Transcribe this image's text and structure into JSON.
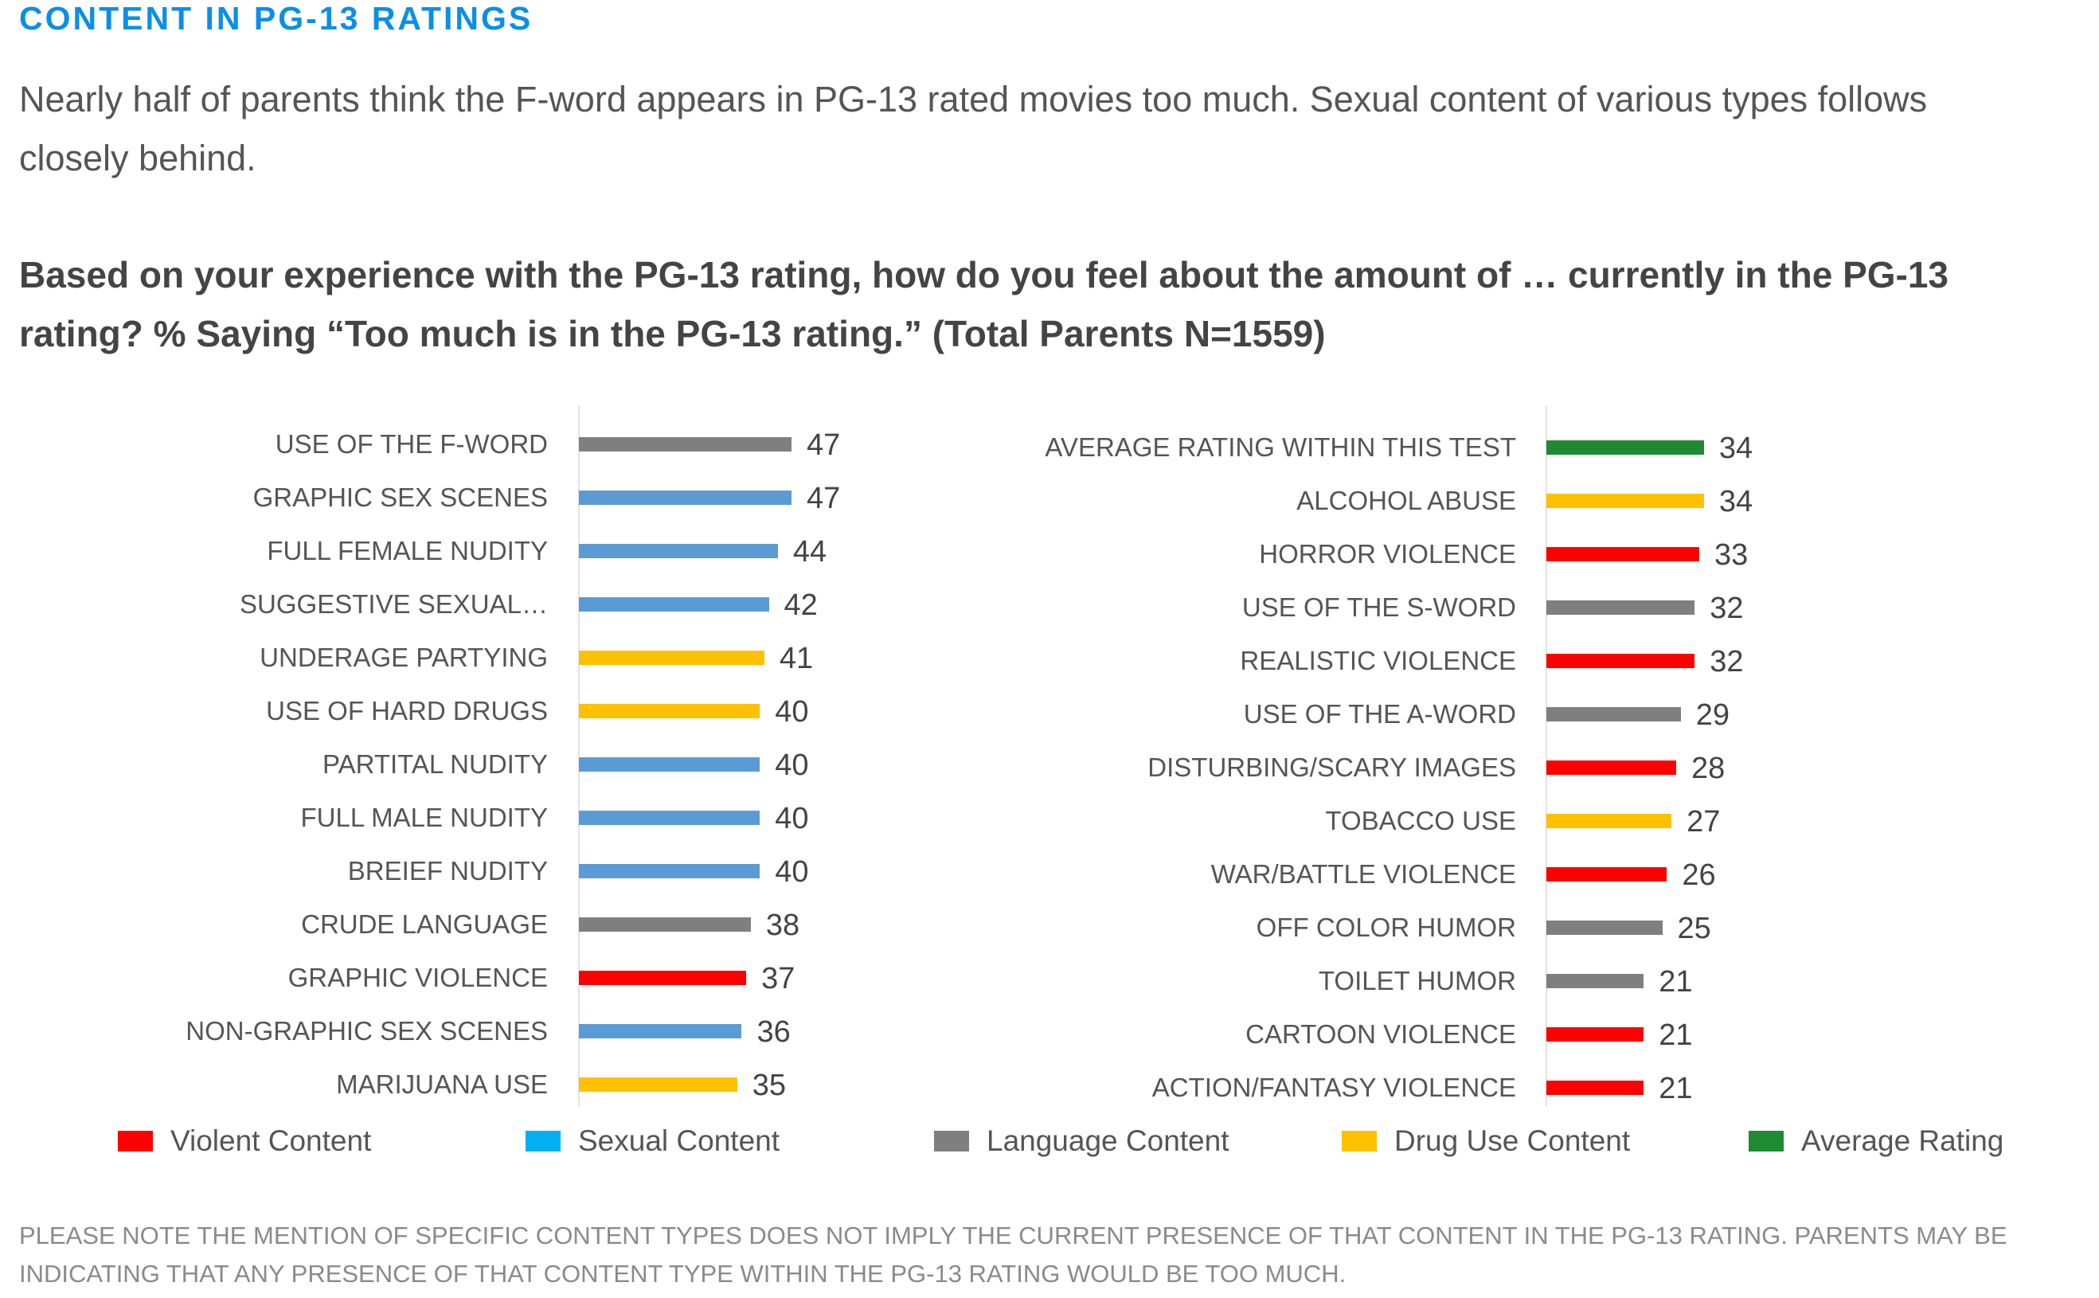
{
  "header": {
    "title": "CONTENT IN PG-13 RATINGS",
    "intro": "Nearly half of parents think the F-word appears in PG-13 rated movies too much. Sexual content of various types follows closely behind.",
    "question": "Based on your experience with the PG-13 rating, how do you feel about the amount of … currently in the PG-13 rating? % Saying “Too much is in the PG-13 rating.” (Total Parents N=1559)"
  },
  "colors": {
    "violent": "#ff0000",
    "sexual": "#5b9bd5",
    "sexual_legend": "#00b0f0",
    "language": "#7f7f7f",
    "drug": "#ffc000",
    "average": "#1e8a32"
  },
  "chart_data": [
    {
      "type": "bar",
      "orientation": "horizontal",
      "xlim": [
        0,
        50
      ],
      "grid": false,
      "categories": [
        "USE OF THE F-WORD",
        "GRAPHIC SEX SCENES",
        "FULL FEMALE NUDITY",
        "SUGGESTIVE SEXUAL…",
        "UNDERAGE PARTYING",
        "USE OF HARD DRUGS",
        "PARTITAL NUDITY",
        "FULL MALE NUDITY",
        "BREIEF NUDITY",
        "CRUDE LANGUAGE",
        "GRAPHIC VIOLENCE",
        "NON-GRAPHIC SEX SCENES",
        "MARIJUANA USE"
      ],
      "values": [
        47,
        47,
        44,
        42,
        41,
        40,
        40,
        40,
        40,
        38,
        37,
        36,
        35
      ],
      "groups": [
        "language",
        "sexual",
        "sexual",
        "sexual",
        "drug",
        "drug",
        "sexual",
        "sexual",
        "sexual",
        "language",
        "violent",
        "sexual",
        "drug"
      ]
    },
    {
      "type": "bar",
      "orientation": "horizontal",
      "xlim": [
        0,
        50
      ],
      "grid": false,
      "categories": [
        "AVERAGE RATING WITHIN THIS TEST",
        "ALCOHOL ABUSE",
        "HORROR VIOLENCE",
        "USE OF THE S-WORD",
        "REALISTIC VIOLENCE",
        "USE OF THE A-WORD",
        "DISTURBING/SCARY IMAGES",
        "TOBACCO USE",
        "WAR/BATTLE VIOLENCE",
        "OFF COLOR HUMOR",
        "TOILET HUMOR",
        "CARTOON VIOLENCE",
        "ACTION/FANTASY VIOLENCE"
      ],
      "values": [
        34,
        34,
        33,
        32,
        32,
        29,
        28,
        27,
        26,
        25,
        21,
        21,
        21
      ],
      "groups": [
        "average",
        "drug",
        "violent",
        "language",
        "violent",
        "language",
        "violent",
        "drug",
        "violent",
        "language",
        "language",
        "violent",
        "violent"
      ]
    }
  ],
  "legend": [
    {
      "label": "Violent Content",
      "color_key": "violent"
    },
    {
      "label": "Sexual Content",
      "color_key": "sexual_legend"
    },
    {
      "label": "Language Content",
      "color_key": "language"
    },
    {
      "label": "Drug Use Content",
      "color_key": "drug"
    },
    {
      "label": "Average Rating",
      "color_key": "average"
    }
  ],
  "footnote": "PLEASE NOTE THE MENTION OF SPECIFIC CONTENT TYPES DOES NOT IMPLY THE CURRENT PRESENCE OF THAT CONTENT IN THE PG-13 RATING.  PARENTS MAY BE INDICATING THAT ANY PRESENCE OF THAT CONTENT TYPE WITHIN THE PG-13 RATING WOULD BE TOO MUCH."
}
